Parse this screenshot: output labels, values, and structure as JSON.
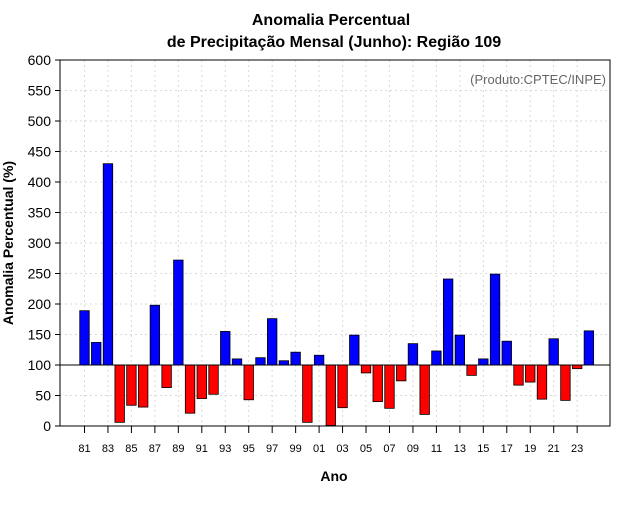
{
  "chart_data": {
    "type": "bar",
    "title_line1": "Anomalia Percentual",
    "title_line2": "de Precipitação Mensal (Junho): Região 109",
    "xlabel": "Ano",
    "ylabel": "Anomalia Percentual (%)",
    "credit": "(Produto:CPTEC/INPE)",
    "ylim": [
      0,
      600
    ],
    "yticks": [
      0,
      50,
      100,
      150,
      200,
      250,
      300,
      350,
      400,
      450,
      500,
      550,
      600
    ],
    "baseline": 100,
    "colors": {
      "above": "#0000ff",
      "below": "#ff0000",
      "baseline_line": "#000000",
      "grid": "#d9d9d9"
    },
    "categories": [
      "81",
      "82",
      "83",
      "84",
      "85",
      "86",
      "87",
      "88",
      "89",
      "90",
      "91",
      "92",
      "93",
      "94",
      "95",
      "96",
      "97",
      "98",
      "99",
      "00",
      "01",
      "02",
      "03",
      "04",
      "05",
      "06",
      "07",
      "08",
      "09",
      "10",
      "11",
      "12",
      "13",
      "14",
      "15",
      "16",
      "17",
      "18",
      "19",
      "20",
      "21",
      "22",
      "23",
      "24"
    ],
    "visible_tick_labels": [
      "81",
      "83",
      "85",
      "87",
      "89",
      "91",
      "93",
      "95",
      "97",
      "99",
      "01",
      "03",
      "05",
      "07",
      "09",
      "11",
      "13",
      "15",
      "17",
      "19",
      "21",
      "23"
    ],
    "values": [
      189,
      137,
      430,
      6,
      34,
      31,
      198,
      63,
      272,
      21,
      45,
      52,
      155,
      110,
      43,
      112,
      176,
      107,
      121,
      6,
      116,
      1,
      30,
      149,
      87,
      40,
      29,
      74,
      135,
      19,
      123,
      241,
      149,
      83,
      110,
      249,
      139,
      67,
      72,
      44,
      143,
      42,
      94,
      156
    ]
  }
}
